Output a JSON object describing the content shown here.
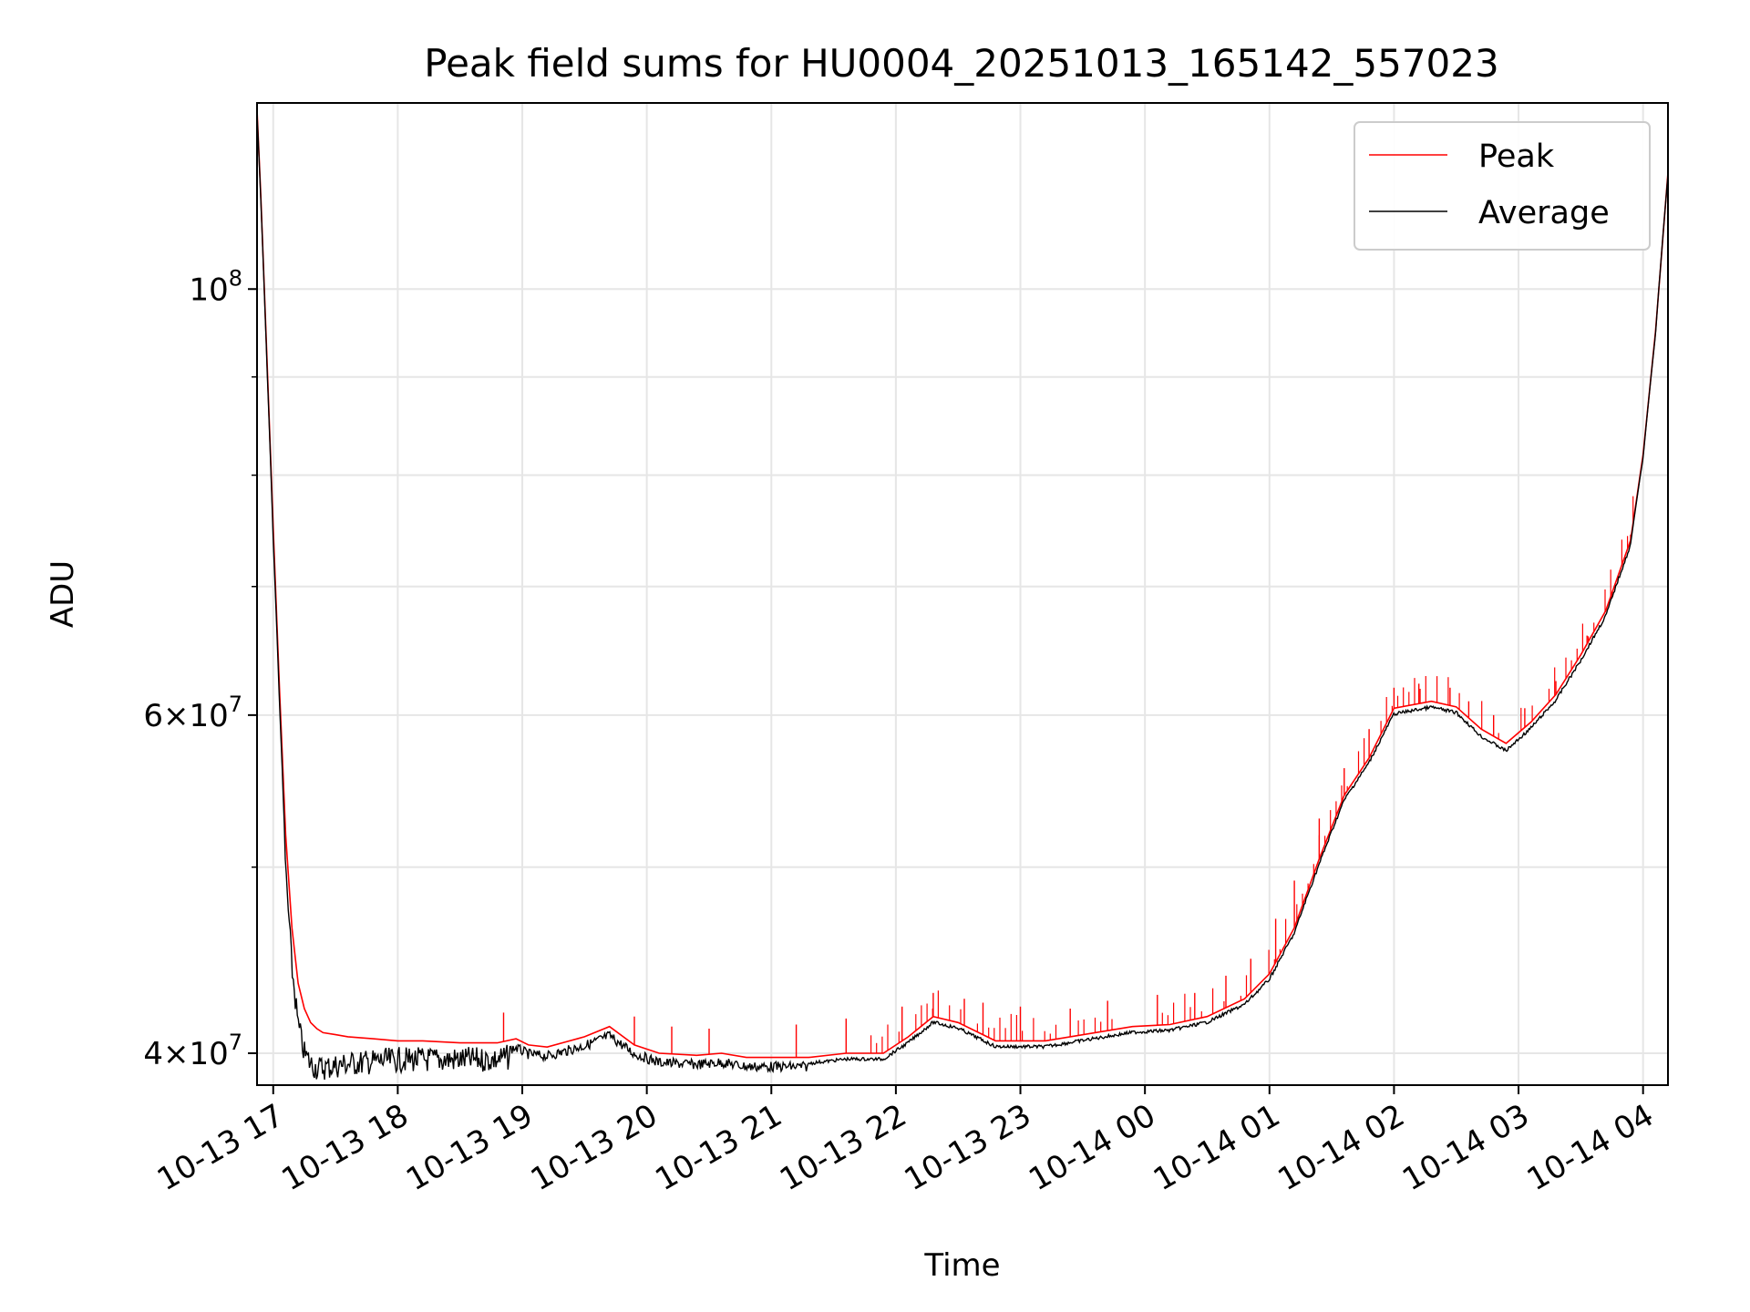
{
  "chart_data": {
    "type": "line",
    "title": "Peak field sums for HU0004_20251013_165142_557023",
    "xlabel": "Time",
    "ylabel": "ADU",
    "y_scale": "log",
    "ylim": [
      38500000,
      125000000
    ],
    "x_unit": "hours since 10-13 17:00",
    "xlim": [
      -0.13,
      11.2
    ],
    "grid": true,
    "legend_position": "upper right",
    "x_ticks": [
      {
        "value": 0,
        "label": "10-13 17"
      },
      {
        "value": 1,
        "label": "10-13 18"
      },
      {
        "value": 2,
        "label": "10-13 19"
      },
      {
        "value": 3,
        "label": "10-13 20"
      },
      {
        "value": 4,
        "label": "10-13 21"
      },
      {
        "value": 5,
        "label": "10-13 22"
      },
      {
        "value": 6,
        "label": "10-13 23"
      },
      {
        "value": 7,
        "label": "10-14 00"
      },
      {
        "value": 8,
        "label": "10-14 01"
      },
      {
        "value": 9,
        "label": "10-14 02"
      },
      {
        "value": 10,
        "label": "10-14 03"
      },
      {
        "value": 11,
        "label": "10-14 04"
      }
    ],
    "y_major_ticks": [
      {
        "value": 40000000,
        "mant": "4",
        "exp": "7"
      },
      {
        "value": 60000000,
        "mant": "6",
        "exp": "7"
      },
      {
        "value": 100000000,
        "mant": "",
        "exp": "8"
      }
    ],
    "y_minor_ticks": [
      50000000,
      70000000,
      80000000,
      90000000
    ],
    "series": [
      {
        "name": "Peak",
        "color": "#ff0000",
        "x": [
          -0.13,
          -0.1,
          -0.05,
          0.0,
          0.05,
          0.1,
          0.15,
          0.2,
          0.25,
          0.3,
          0.35,
          0.4,
          0.5,
          0.6,
          0.8,
          1.0,
          1.2,
          1.5,
          1.8,
          1.95,
          2.05,
          2.2,
          2.5,
          2.7,
          2.9,
          3.1,
          3.4,
          3.6,
          3.8,
          4.0,
          4.3,
          4.6,
          4.9,
          5.1,
          5.3,
          5.5,
          5.8,
          6.2,
          6.6,
          6.9,
          7.2,
          7.5,
          7.8,
          8.0,
          8.2,
          8.4,
          8.6,
          8.8,
          9.0,
          9.3,
          9.5,
          9.7,
          9.9,
          10.1,
          10.3,
          10.5,
          10.7,
          10.9,
          11.0,
          11.1,
          11.2
        ],
        "y": [
          124000000,
          112000000,
          92000000,
          75000000,
          62000000,
          52000000,
          46500000,
          43500000,
          42200000,
          41500000,
          41200000,
          41000000,
          40900000,
          40800000,
          40700000,
          40600000,
          40600000,
          40500000,
          40500000,
          40700000,
          40400000,
          40300000,
          40800000,
          41300000,
          40400000,
          40000000,
          39900000,
          40000000,
          39800000,
          39800000,
          39800000,
          40000000,
          40000000,
          40800000,
          41800000,
          41500000,
          40600000,
          40600000,
          41000000,
          41300000,
          41400000,
          41800000,
          42700000,
          44000000,
          46500000,
          50500000,
          54500000,
          57000000,
          60500000,
          61000000,
          60600000,
          59000000,
          58000000,
          59500000,
          61500000,
          64500000,
          68000000,
          74000000,
          82000000,
          95000000,
          115000000
        ],
        "spikes": [
          [
            1.85,
            42000000
          ],
          [
            2.9,
            41800000
          ],
          [
            3.2,
            41300000
          ],
          [
            3.5,
            41200000
          ],
          [
            4.2,
            41400000
          ],
          [
            4.6,
            41700000
          ],
          [
            5.05,
            42300000
          ],
          [
            5.3,
            43000000
          ],
          [
            5.55,
            42700000
          ],
          [
            5.7,
            42500000
          ],
          [
            6.0,
            42300000
          ],
          [
            6.4,
            42200000
          ],
          [
            6.7,
            42600000
          ],
          [
            7.1,
            42900000
          ],
          [
            7.4,
            43000000
          ],
          [
            7.65,
            43900000
          ],
          [
            7.85,
            44800000
          ],
          [
            8.05,
            47000000
          ],
          [
            8.2,
            49200000
          ],
          [
            8.4,
            53000000
          ],
          [
            8.6,
            56300000
          ],
          [
            8.8,
            59000000
          ],
          [
            9.0,
            62000000
          ],
          [
            9.2,
            62300000
          ],
          [
            9.45,
            62000000
          ],
          [
            9.6,
            61000000
          ],
          [
            9.8,
            60000000
          ],
          [
            10.05,
            60500000
          ],
          [
            10.3,
            62500000
          ],
          [
            10.55,
            66000000
          ],
          [
            10.75,
            69000000
          ],
          [
            10.9,
            74500000
          ]
        ]
      },
      {
        "name": "Average",
        "color": "#000000",
        "x": [
          -0.13,
          -0.1,
          -0.05,
          0.0,
          0.05,
          0.1,
          0.15,
          0.2,
          0.25,
          0.3,
          0.35,
          0.4,
          0.5,
          0.6,
          0.8,
          1.0,
          1.2,
          1.5,
          1.8,
          1.95,
          2.05,
          2.2,
          2.5,
          2.7,
          2.9,
          3.1,
          3.4,
          3.6,
          3.8,
          4.0,
          4.3,
          4.6,
          4.9,
          5.1,
          5.3,
          5.5,
          5.8,
          6.2,
          6.6,
          6.9,
          7.2,
          7.5,
          7.8,
          8.0,
          8.2,
          8.4,
          8.6,
          8.8,
          9.0,
          9.3,
          9.5,
          9.7,
          9.9,
          10.1,
          10.3,
          10.5,
          10.7,
          10.9,
          11.0,
          11.1,
          11.2
        ],
        "y": [
          123500000,
          111500000,
          91000000,
          74000000,
          61000000,
          50500000,
          45000000,
          42000000,
          40600000,
          40100000,
          39900000,
          39900000,
          40000000,
          40100000,
          40200000,
          40300000,
          40300000,
          40300000,
          40300000,
          40500000,
          40200000,
          40100000,
          40600000,
          41100000,
          40200000,
          39800000,
          39700000,
          39800000,
          39600000,
          39600000,
          39600000,
          39800000,
          39800000,
          40600000,
          41600000,
          41300000,
          40400000,
          40400000,
          40800000,
          41100000,
          41200000,
          41600000,
          42500000,
          43800000,
          46300000,
          50300000,
          54300000,
          56800000,
          60200000,
          60700000,
          60300000,
          58600000,
          57600000,
          59200000,
          61200000,
          64200000,
          67700000,
          73700000,
          81700000,
          94700000,
          114700000
        ],
        "noise_band": [
          0.08,
          1.9
        ]
      }
    ]
  }
}
